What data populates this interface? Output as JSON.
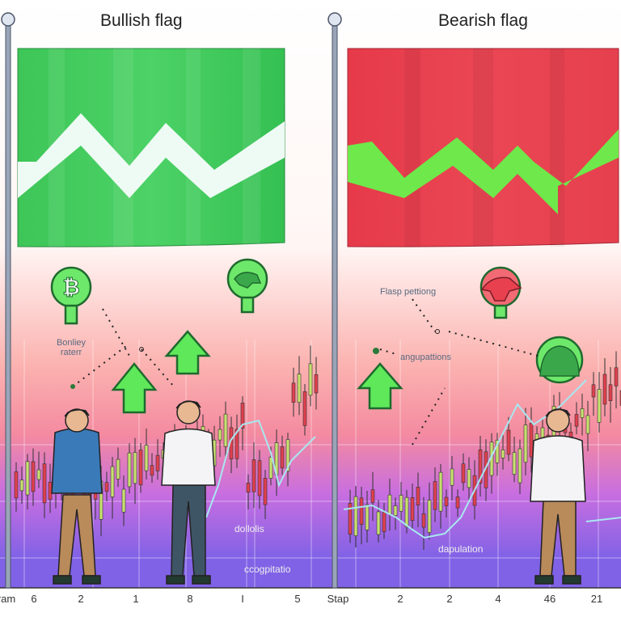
{
  "panels": {
    "left": {
      "title": "Bullish flag",
      "flag_color": "#3cc85a",
      "zigzag_color": "#ffffff"
    },
    "right": {
      "title": "Bearish flag",
      "flag_color": "#e8404e",
      "zigzag_color": "#6ee84a"
    }
  },
  "annotations": {
    "left_note": "Bonliey\nraterr",
    "left_low": "dollolis",
    "left_bottom": "ccogpitatio",
    "right_note": "Flasp pettiong",
    "right_mid": "angupattions",
    "right_low": "dapulation"
  },
  "icons": [
    "bitcoin-icon",
    "bull-icon",
    "bear-icon",
    "hippo-icon",
    "up-arrow-icon"
  ],
  "x_axis_labels": [
    "ram",
    "6",
    "2",
    "1",
    "8",
    "I",
    "5",
    "Stap",
    "2",
    "2",
    "4",
    "46",
    "21"
  ],
  "colors": {
    "bull_green": "#3cc85a",
    "bear_red": "#e8404e",
    "bg_top": "#ffffff",
    "bg_mid": "#f7a0a8",
    "bg_bottom": "#8a62e8"
  }
}
